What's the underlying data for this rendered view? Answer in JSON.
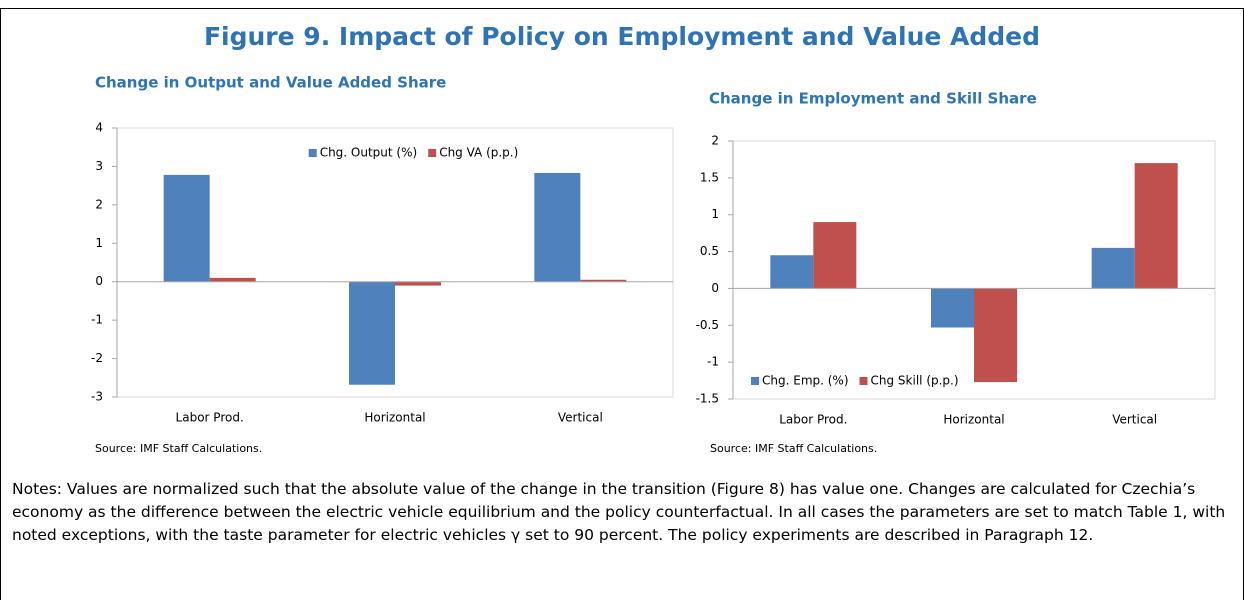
{
  "figure_title": "Figure 9. Impact of Policy on Employment and Value Added",
  "chart_data": [
    {
      "type": "bar",
      "title": "Change in Output and Value Added Share",
      "categories": [
        "Labor Prod.",
        "Horizontal",
        "Vertical"
      ],
      "series": [
        {
          "name": "Chg. Output (%)",
          "color": "#4f81bd",
          "values": [
            2.78,
            -2.68,
            2.83
          ]
        },
        {
          "name": "Chg VA (p.p.)",
          "color": "#c0504d",
          "values": [
            0.1,
            -0.1,
            0.05
          ]
        }
      ],
      "ylim": [
        -3,
        4
      ],
      "yticks": [
        -3,
        -2,
        -1,
        0,
        1,
        2,
        3,
        4
      ],
      "grid": false,
      "legend": "upper center",
      "source": "Source: IMF Staff Calculations."
    },
    {
      "type": "bar",
      "title": "Change in Employment and Skill Share",
      "categories": [
        "Labor Prod.",
        "Horizontal",
        "Vertical"
      ],
      "series": [
        {
          "name": "Chg. Emp. (%)",
          "color": "#4f81bd",
          "values": [
            0.45,
            -0.53,
            0.55
          ]
        },
        {
          "name": "Chg Skill (p.p.)",
          "color": "#c0504d",
          "values": [
            0.9,
            -1.27,
            1.7
          ]
        }
      ],
      "ylim": [
        -1.5,
        2
      ],
      "yticks": [
        -1.5,
        -1,
        -0.5,
        0,
        0.5,
        1,
        1.5,
        2
      ],
      "grid": false,
      "legend": "lower left",
      "source": "Source: IMF Staff Calculations."
    }
  ],
  "notes": "Notes: Values are normalized such that the absolute value of the change in the transition (Figure 8) has value one. Changes are calculated for Czechia’s economy as the difference between the electric vehicle equilibrium and the policy counterfactual. In all cases the parameters are set to match Table 1, with noted exceptions, with the taste parameter for electric vehicles γ set to 90 percent. The policy experiments are described in Paragraph 12."
}
